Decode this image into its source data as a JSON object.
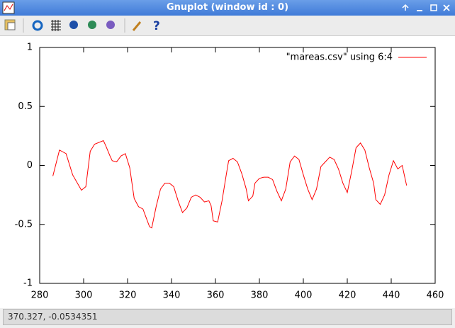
{
  "window": {
    "title": "Gnuplot (window id : 0)"
  },
  "status": {
    "text": "370.327, -0.0534351"
  },
  "chart_data": {
    "type": "line",
    "x": [
      286,
      289,
      292,
      295,
      299,
      301,
      303,
      305,
      309,
      310,
      312,
      313,
      315,
      317,
      319,
      321,
      323,
      325,
      327,
      330,
      331,
      333,
      335,
      337,
      339,
      341,
      343,
      345,
      347,
      349,
      351,
      353,
      355,
      357,
      358,
      359,
      361,
      363,
      365,
      366,
      368,
      370,
      372,
      374,
      375,
      377,
      378,
      380,
      382,
      384,
      386,
      388,
      390,
      392,
      394,
      396,
      398,
      400,
      402,
      404,
      406,
      408,
      410,
      412,
      414,
      416,
      418,
      420,
      422,
      424,
      426,
      428,
      430,
      432,
      433,
      435,
      437,
      439,
      441,
      443,
      445,
      447
    ],
    "series": [
      {
        "name": "\"mareas.csv\" using 6:4",
        "color": "#ff0000",
        "values": [
          -0.09,
          0.13,
          0.1,
          -0.08,
          -0.21,
          -0.18,
          0.12,
          0.18,
          0.21,
          0.17,
          0.08,
          0.04,
          0.03,
          0.08,
          0.1,
          -0.02,
          -0.28,
          -0.35,
          -0.37,
          -0.52,
          -0.53,
          -0.35,
          -0.2,
          -0.15,
          -0.15,
          -0.18,
          -0.3,
          -0.4,
          -0.36,
          -0.27,
          -0.25,
          -0.27,
          -0.31,
          -0.3,
          -0.34,
          -0.47,
          -0.48,
          -0.3,
          -0.07,
          0.04,
          0.06,
          0.03,
          -0.07,
          -0.2,
          -0.3,
          -0.26,
          -0.15,
          -0.11,
          -0.1,
          -0.1,
          -0.12,
          -0.22,
          -0.3,
          -0.2,
          0.03,
          0.08,
          0.05,
          -0.08,
          -0.2,
          -0.29,
          -0.2,
          -0.01,
          0.03,
          0.07,
          0.05,
          -0.03,
          -0.15,
          -0.23,
          -0.05,
          0.15,
          0.19,
          0.13,
          -0.02,
          -0.15,
          -0.29,
          -0.33,
          -0.25,
          -0.08,
          0.04,
          -0.03,
          0.0,
          -0.17
        ]
      }
    ],
    "xlim": [
      280,
      460
    ],
    "xticks": [
      280,
      300,
      320,
      340,
      360,
      380,
      400,
      420,
      440,
      460
    ],
    "ylim": [
      -1,
      1
    ],
    "yticks": [
      -1,
      -0.5,
      0,
      0.5,
      1
    ],
    "legend": "top-right"
  }
}
